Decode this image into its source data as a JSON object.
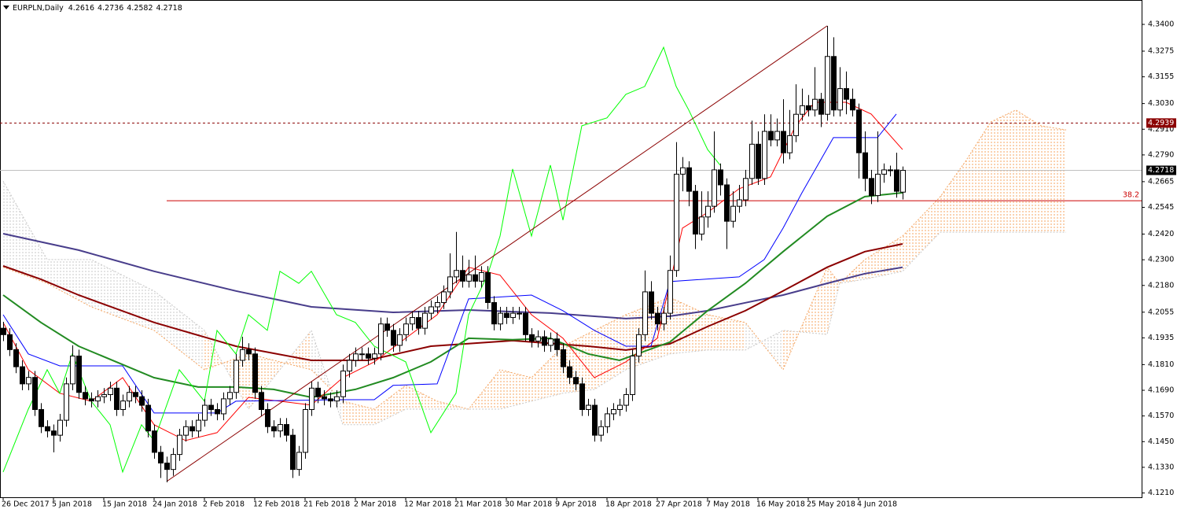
{
  "chart_data": {
    "type": "candlestick",
    "title": "EURPLN,Daily",
    "categories": [
      "26 Dec 2017",
      null,
      null,
      null,
      null,
      null,
      null,
      null,
      "5 Jan 2018",
      null,
      null,
      null,
      null,
      null,
      null,
      null,
      "15 Jan 2018",
      null,
      null,
      null,
      null,
      null,
      null,
      null,
      "24 Jan 2018",
      null,
      null,
      null,
      null,
      null,
      null,
      null,
      "2 Feb 2018",
      null,
      null,
      null,
      null,
      null,
      null,
      null,
      "12 Feb 2018",
      null,
      null,
      null,
      null,
      null,
      null,
      null,
      "21 Feb 2018",
      null,
      null,
      null,
      null,
      null,
      null,
      null,
      "2 Mar 2018",
      null,
      null,
      null,
      null,
      null,
      null,
      null,
      "12 Mar 2018",
      null,
      null,
      null,
      null,
      null,
      null,
      null,
      "21 Mar 2018",
      null,
      null,
      null,
      null,
      null,
      null,
      null,
      "30 Mar 2018",
      null,
      null,
      null,
      null,
      null,
      null,
      null,
      "9 Apr 2018",
      null,
      null,
      null,
      null,
      null,
      null,
      null,
      "18 Apr 2018",
      null,
      null,
      null,
      null,
      null,
      null,
      null,
      "27 Apr 2018",
      null,
      null,
      null,
      null,
      null,
      null,
      null,
      "7 May 2018",
      null,
      null,
      null,
      null,
      null,
      null,
      null,
      "16 May 2018",
      null,
      null,
      null,
      null,
      null,
      null,
      null,
      "25 May 2018",
      null,
      null,
      null,
      null,
      null,
      null,
      null,
      "4 Jun 2018",
      null,
      null,
      null,
      null,
      null,
      null,
      null
    ],
    "open": [
      4.198,
      4.195,
      4.188,
      4.18,
      4.172,
      4.175,
      4.16,
      4.152,
      4.15,
      4.148,
      4.155,
      4.172,
      4.185,
      4.168,
      4.165,
      4.164,
      4.166,
      4.167,
      4.17,
      4.16,
      4.164,
      4.168,
      4.166,
      4.162,
      4.15,
      4.14,
      4.135,
      4.132,
      4.139,
      4.148,
      4.152,
      4.15,
      4.155,
      4.162,
      4.16,
      4.158,
      4.165,
      4.168,
      4.183,
      4.188,
      4.186,
      4.168,
      4.16,
      4.152,
      4.15,
      4.153,
      4.148,
      4.132,
      4.14,
      4.16,
      4.17,
      4.166,
      4.165,
      4.164,
      4.166,
      4.178,
      4.183,
      4.186,
      4.186,
      4.184,
      4.186,
      4.2,
      4.197,
      4.19,
      4.195,
      4.2,
      4.203,
      4.198,
      4.205,
      4.208,
      4.21,
      4.215,
      4.222,
      4.225,
      4.22,
      4.223,
      4.22,
      4.224,
      4.21,
      4.2,
      4.205,
      4.203,
      4.205,
      4.205,
      4.195,
      4.192,
      4.194,
      4.19,
      4.193,
      4.188,
      4.18,
      4.175,
      4.172,
      4.16,
      4.162,
      4.148,
      4.152,
      4.158,
      4.16,
      4.162,
      4.167,
      4.185,
      4.195,
      4.215,
      4.205,
      4.2,
      4.205,
      4.225,
      4.27,
      4.273,
      4.262,
      4.242,
      4.25,
      4.255,
      4.272,
      4.265,
      4.248,
      4.255,
      4.258,
      4.268,
      4.284,
      4.268,
      4.29,
      4.286,
      4.29,
      4.28,
      4.288,
      4.298,
      4.302,
      4.3,
      4.305,
      4.298,
      4.325,
      4.3,
      4.31,
      4.305,
      4.3,
      4.28,
      4.268,
      4.26,
      4.27,
      4.272,
      4.272,
      4.2616
    ],
    "high": [
      4.201,
      4.198,
      4.191,
      4.183,
      4.178,
      4.178,
      4.163,
      4.155,
      4.153,
      4.158,
      4.175,
      4.19,
      4.188,
      4.171,
      4.168,
      4.169,
      4.17,
      4.173,
      4.173,
      4.167,
      4.171,
      4.171,
      4.169,
      4.165,
      4.153,
      4.143,
      4.138,
      4.142,
      4.151,
      4.155,
      4.155,
      4.158,
      4.165,
      4.165,
      4.163,
      4.168,
      4.171,
      4.186,
      4.194,
      4.191,
      4.189,
      4.171,
      4.163,
      4.155,
      4.156,
      4.156,
      4.151,
      4.143,
      4.163,
      4.173,
      4.173,
      4.169,
      4.168,
      4.169,
      4.181,
      4.186,
      4.189,
      4.189,
      4.189,
      4.189,
      4.203,
      4.203,
      4.2,
      4.198,
      4.203,
      4.206,
      4.206,
      4.208,
      4.211,
      4.213,
      4.218,
      4.233,
      4.243,
      4.232,
      4.23,
      4.232,
      4.227,
      4.227,
      4.213,
      4.208,
      4.208,
      4.208,
      4.208,
      4.208,
      4.198,
      4.197,
      4.197,
      4.196,
      4.196,
      4.191,
      4.183,
      4.178,
      4.175,
      4.165,
      4.165,
      4.155,
      4.161,
      4.163,
      4.165,
      4.17,
      4.188,
      4.198,
      4.225,
      4.22,
      4.208,
      4.208,
      4.232,
      4.285,
      4.278,
      4.276,
      4.265,
      4.262,
      4.262,
      4.29,
      4.275,
      4.268,
      4.262,
      4.265,
      4.272,
      4.295,
      4.29,
      4.298,
      4.298,
      4.296,
      4.305,
      4.3,
      4.312,
      4.31,
      4.307,
      4.32,
      4.308,
      4.3393,
      4.334,
      4.32,
      4.318,
      4.31,
      4.303,
      4.29,
      4.272,
      4.29,
      4.275,
      4.274,
      4.28,
      4.2736
    ],
    "low": [
      4.192,
      4.185,
      4.177,
      4.169,
      4.169,
      4.157,
      4.149,
      4.147,
      4.14,
      4.145,
      4.152,
      4.169,
      4.165,
      4.162,
      4.161,
      4.161,
      4.163,
      4.164,
      4.157,
      4.157,
      4.161,
      4.163,
      4.159,
      4.147,
      4.137,
      4.128,
      4.126,
      4.129,
      4.136,
      4.145,
      4.147,
      4.147,
      4.152,
      4.157,
      4.155,
      4.155,
      4.162,
      4.165,
      4.18,
      4.183,
      4.165,
      4.157,
      4.149,
      4.147,
      4.147,
      4.145,
      4.128,
      4.129,
      4.137,
      4.157,
      4.163,
      4.162,
      4.161,
      4.161,
      4.163,
      4.175,
      4.18,
      4.183,
      4.181,
      4.181,
      4.183,
      4.194,
      4.187,
      4.187,
      4.192,
      4.197,
      4.195,
      4.195,
      4.202,
      4.205,
      4.207,
      4.212,
      4.219,
      4.217,
      4.217,
      4.217,
      4.217,
      4.207,
      4.197,
      4.197,
      4.2,
      4.2,
      4.202,
      4.192,
      4.189,
      4.189,
      4.187,
      4.187,
      4.185,
      4.177,
      4.172,
      4.169,
      4.157,
      4.157,
      4.145,
      4.145,
      4.149,
      4.155,
      4.157,
      4.159,
      4.164,
      4.182,
      4.192,
      4.202,
      4.197,
      4.197,
      4.202,
      4.222,
      4.262,
      4.255,
      4.235,
      4.239,
      4.245,
      4.252,
      4.26,
      4.235,
      4.245,
      4.252,
      4.255,
      4.265,
      4.265,
      4.265,
      4.283,
      4.283,
      4.275,
      4.277,
      4.285,
      4.295,
      4.297,
      4.297,
      4.292,
      4.295,
      4.297,
      4.297,
      4.298,
      4.297,
      4.268,
      4.262,
      4.256,
      4.257,
      4.266,
      4.269,
      4.259,
      4.2582
    ],
    "close": [
      4.195,
      4.188,
      4.18,
      4.172,
      4.175,
      4.16,
      4.152,
      4.15,
      4.148,
      4.155,
      4.172,
      4.185,
      4.168,
      4.165,
      4.164,
      4.166,
      4.167,
      4.17,
      4.16,
      4.164,
      4.168,
      4.166,
      4.162,
      4.15,
      4.14,
      4.135,
      4.132,
      4.139,
      4.148,
      4.152,
      4.15,
      4.155,
      4.162,
      4.16,
      4.158,
      4.165,
      4.168,
      4.183,
      4.188,
      4.186,
      4.168,
      4.16,
      4.152,
      4.15,
      4.153,
      4.148,
      4.132,
      4.14,
      4.16,
      4.17,
      4.166,
      4.165,
      4.164,
      4.166,
      4.178,
      4.183,
      4.186,
      4.186,
      4.184,
      4.186,
      4.2,
      4.197,
      4.19,
      4.195,
      4.2,
      4.203,
      4.198,
      4.205,
      4.208,
      4.21,
      4.215,
      4.222,
      4.225,
      4.22,
      4.223,
      4.22,
      4.224,
      4.21,
      4.2,
      4.205,
      4.203,
      4.205,
      4.205,
      4.195,
      4.192,
      4.194,
      4.19,
      4.193,
      4.188,
      4.18,
      4.175,
      4.172,
      4.16,
      4.162,
      4.148,
      4.152,
      4.158,
      4.16,
      4.162,
      4.167,
      4.185,
      4.195,
      4.215,
      4.205,
      4.2,
      4.205,
      4.225,
      4.27,
      4.273,
      4.262,
      4.242,
      4.25,
      4.255,
      4.272,
      4.265,
      4.248,
      4.255,
      4.258,
      4.268,
      4.284,
      4.268,
      4.29,
      4.286,
      4.29,
      4.28,
      4.288,
      4.298,
      4.302,
      4.3,
      4.305,
      4.298,
      4.325,
      4.3,
      4.31,
      4.305,
      4.3,
      4.28,
      4.268,
      4.26,
      4.27,
      4.272,
      4.272,
      4.262,
      4.2718
    ],
    "cloud": {
      "x": [
        0,
        7,
        14,
        24,
        32,
        39,
        49,
        54,
        59,
        64,
        69,
        74,
        79,
        84,
        89,
        94,
        99,
        106,
        112,
        118,
        124,
        131,
        133,
        137,
        143,
        149,
        153,
        157,
        161,
        165,
        169
      ],
      "span_a": {
        "color": "#f4a460",
        "values": [
          4.2265,
          4.219,
          4.208,
          4.197,
          4.1786,
          4.186,
          4.1786,
          4.1639,
          4.1602,
          4.1713,
          4.1639,
          4.1602,
          4.1786,
          4.1749,
          4.1896,
          4.197,
          4.2043,
          4.2124,
          4.2043,
          4.2007,
          4.1786,
          4.2265,
          4.219,
          4.2301,
          4.2411,
          4.2595,
          4.276,
          4.2944,
          4.3,
          4.2926,
          4.2907
        ]
      },
      "span_b": {
        "color": "#c8c8c8",
        "values": [
          4.2668,
          4.2301,
          4.2301,
          4.2154,
          4.197,
          4.1602,
          4.197,
          4.1529,
          4.1529,
          4.1602,
          4.1602,
          4.1602,
          4.1602,
          4.1639,
          4.1676,
          4.1694,
          4.1786,
          4.186,
          4.1878,
          4.1878,
          4.197,
          4.1951,
          4.219,
          4.2209,
          4.2246,
          4.2429,
          4.2429,
          4.2429,
          4.2429,
          4.2429,
          4.2429
        ]
      }
    },
    "lines": [
      {
        "color": "#483d8b",
        "thick": true,
        "x": [
          0,
          12,
          24,
          37,
          49,
          62,
          74,
          87,
          99,
          106,
          112,
          118,
          124,
          131,
          137,
          143
        ],
        "values": [
          4.2422,
          4.2345,
          4.2246,
          4.2154,
          4.208,
          4.2054,
          4.2065,
          4.2051,
          4.2025,
          4.2036,
          4.2062,
          4.2099,
          4.2135,
          4.219,
          4.2235,
          4.2265
        ]
      },
      {
        "color": "#8b0000",
        "thick": true,
        "x": [
          0,
          6,
          12,
          24,
          37,
          49,
          58,
          68,
          81,
          93,
          99,
          106,
          112,
          118,
          124,
          131,
          137,
          143
        ],
        "values": [
          4.2271,
          4.2209,
          4.2135,
          4.2007,
          4.1896,
          4.183,
          4.183,
          4.1896,
          4.1922,
          4.1896,
          4.1878,
          4.1907,
          4.1988,
          4.2062,
          4.2154,
          4.2265,
          4.2338,
          4.2374
        ]
      },
      {
        "color": "#228b22",
        "thick": true,
        "x": [
          0,
          6,
          12,
          24,
          31,
          37,
          43,
          49,
          56,
          62,
          68,
          74,
          81,
          87,
          93,
          98,
          106,
          112,
          118,
          124,
          131,
          137,
          143
        ],
        "values": [
          4.2135,
          4.2007,
          4.1896,
          4.1749,
          4.1705,
          4.1705,
          4.1694,
          4.1657,
          4.1694,
          4.1749,
          4.1823,
          4.1933,
          4.1926,
          4.1933,
          4.186,
          4.183,
          4.1915,
          4.2062,
          4.219,
          4.2338,
          4.2503,
          4.2595,
          4.2613
        ]
      },
      {
        "color": "#ff0000",
        "thick": false,
        "x": [
          0,
          4,
          9,
          14,
          19,
          24,
          29,
          34,
          39,
          44,
          49,
          54,
          59,
          64,
          69,
          74,
          79,
          84,
          89,
          94,
          99,
          104,
          108,
          112,
          117,
          122,
          126,
          129,
          134,
          138,
          143
        ],
        "values": [
          4.2007,
          4.1786,
          4.1676,
          4.1639,
          4.1749,
          4.1529,
          4.1455,
          4.1492,
          4.1657,
          4.1639,
          4.1621,
          4.1749,
          4.1823,
          4.1933,
          4.2043,
          4.2265,
          4.2228,
          4.2043,
          4.1933,
          4.1749,
          4.1823,
          4.1933,
          4.2448,
          4.2521,
          4.2632,
          4.2687,
          4.2926,
          4.3036,
          4.3036,
          4.2981,
          4.2815
        ]
      },
      {
        "color": "#0000ff",
        "thick": false,
        "x": [
          0,
          4,
          9,
          19,
          24,
          34,
          37,
          54,
          59,
          62,
          69,
          74,
          84,
          89,
          94,
          99,
          103,
          106,
          117,
          121,
          124,
          127,
          132,
          139,
          142
        ],
        "values": [
          4.2043,
          4.186,
          4.1804,
          4.1804,
          4.1584,
          4.1584,
          4.1639,
          4.1646,
          4.1646,
          4.1713,
          4.172,
          4.2117,
          4.2135,
          4.2062,
          4.197,
          4.1896,
          4.1896,
          4.2198,
          4.222,
          4.2301,
          4.2448,
          4.2613,
          4.2871,
          4.2871,
          4.2981
        ]
      },
      {
        "color": "#00ff00",
        "thick": false,
        "x": [
          0,
          2,
          4,
          7,
          9,
          11,
          12,
          14,
          17,
          19,
          22,
          24,
          28,
          32,
          34,
          37,
          39,
          42,
          44,
          47,
          49,
          53,
          56,
          59,
          64,
          68,
          72,
          74,
          77,
          79,
          81,
          84,
          87,
          89,
          92,
          96,
          99,
          102,
          105,
          107,
          109,
          112,
          114
        ],
        "values": [
          4.1308,
          4.1455,
          4.1602,
          4.1786,
          4.1676,
          4.186,
          4.1786,
          4.1639,
          4.1529,
          4.1308,
          4.1529,
          4.1455,
          4.1786,
          4.1639,
          4.197,
          4.186,
          4.2043,
          4.197,
          4.2246,
          4.219,
          4.2246,
          4.2043,
          4.2007,
          4.1896,
          4.1823,
          4.1492,
          4.1676,
          4.2043,
          4.2228,
          4.2411,
          4.2724,
          4.2411,
          4.2742,
          4.2485,
          4.2926,
          4.2963,
          4.3073,
          4.311,
          4.3293,
          4.311,
          4.3,
          4.2815,
          4.2742
        ]
      }
    ],
    "trendline": {
      "color": "#8b0000",
      "x": [
        26,
        131
      ],
      "values": [
        4.1264,
        4.3393
      ]
    },
    "fib": {
      "label": "38.2",
      "color": "#cc0000",
      "from": 26,
      "value": 4.2576
    },
    "alert_line": {
      "color": "#8b0000",
      "value": 4.2939
    },
    "bid_line": {
      "color": "#c0c0c0",
      "value": 4.2718
    },
    "xlim": [
      -0.5,
      181
    ],
    "ylim": [
      4.119,
      4.3514
    ],
    "yticks": [
      {
        "value": 4.34,
        "label": "4.3400"
      },
      {
        "value": 4.3275,
        "label": "4.3275"
      },
      {
        "value": 4.3155,
        "label": "4.3155"
      },
      {
        "value": 4.303,
        "label": "4.3030"
      },
      {
        "value": 4.291,
        "label": "4.2910"
      },
      {
        "value": 4.279,
        "label": "4.2790"
      },
      {
        "value": 4.2665,
        "label": "4.2665"
      },
      {
        "value": 4.2545,
        "label": "4.2545"
      },
      {
        "value": 4.242,
        "label": "4.2420"
      },
      {
        "value": 4.23,
        "label": "4.2300"
      },
      {
        "value": 4.218,
        "label": "4.2180"
      },
      {
        "value": 4.2055,
        "label": "4.2055"
      },
      {
        "value": 4.1935,
        "label": "4.1935"
      },
      {
        "value": 4.181,
        "label": "4.1810"
      },
      {
        "value": 4.169,
        "label": "4.1690"
      },
      {
        "value": 4.157,
        "label": "4.1570"
      },
      {
        "value": 4.145,
        "label": "4.1450"
      },
      {
        "value": 4.133,
        "label": "4.1330"
      },
      {
        "value": 4.121,
        "label": "4.1210"
      }
    ]
  }
}
